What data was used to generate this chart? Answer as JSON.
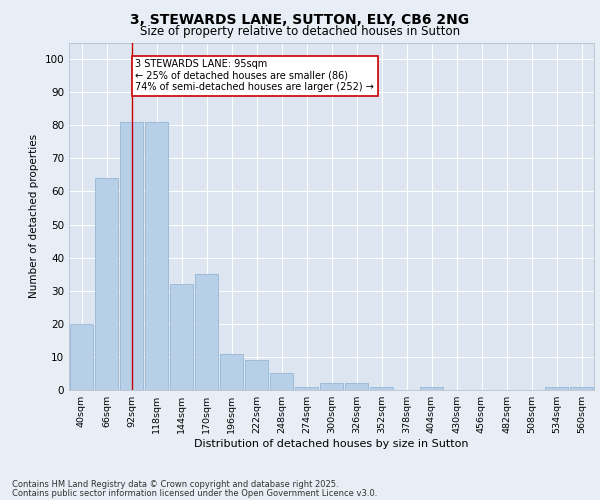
{
  "title1": "3, STEWARDS LANE, SUTTON, ELY, CB6 2NG",
  "title2": "Size of property relative to detached houses in Sutton",
  "xlabel": "Distribution of detached houses by size in Sutton",
  "ylabel": "Number of detached properties",
  "categories": [
    "40sqm",
    "66sqm",
    "92sqm",
    "118sqm",
    "144sqm",
    "170sqm",
    "196sqm",
    "222sqm",
    "248sqm",
    "274sqm",
    "300sqm",
    "326sqm",
    "352sqm",
    "378sqm",
    "404sqm",
    "430sqm",
    "456sqm",
    "482sqm",
    "508sqm",
    "534sqm",
    "560sqm"
  ],
  "values": [
    20,
    64,
    81,
    81,
    32,
    35,
    11,
    9,
    5,
    1,
    2,
    2,
    1,
    0,
    1,
    0,
    0,
    0,
    0,
    1,
    1
  ],
  "bar_color": "#b8cfe8",
  "bar_edge_color": "#8aafd4",
  "vline_x_index": 2,
  "vline_color": "#cc0000",
  "annotation_text": "3 STEWARDS LANE: 95sqm\n← 25% of detached houses are smaller (86)\n74% of semi-detached houses are larger (252) →",
  "annotation_box_color": "#cc0000",
  "ylim": [
    0,
    105
  ],
  "yticks": [
    0,
    10,
    20,
    30,
    40,
    50,
    60,
    70,
    80,
    90,
    100
  ],
  "background_color": "#dde6f0",
  "fig_background_color": "#e8eef5",
  "footer1": "Contains HM Land Registry data © Crown copyright and database right 2025.",
  "footer2": "Contains public sector information licensed under the Open Government Licence v3.0."
}
